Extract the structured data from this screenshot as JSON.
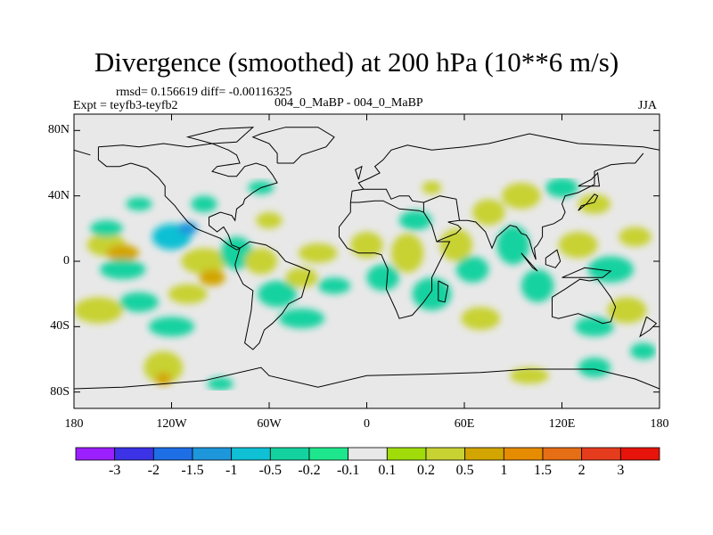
{
  "title": "Divergence (smoothed) at 200 hPa (10**6 m/s)",
  "stats": "rmsd= 0.156619 diff= -0.00116325",
  "expt": "Expt = teyfb3-teyfb2",
  "case": "004_0_MaBP - 004_0_MaBP",
  "season": "JJA",
  "colors": {
    "background": "#e8e8e8",
    "coast": "#000000",
    "bins": [
      "#9b1fff",
      "#3c32e6",
      "#1e6ee6",
      "#1e96dc",
      "#10c0d4",
      "#14d2a0",
      "#1ee68c",
      "#e8e8e8",
      "#a0dc0a",
      "#c8d232",
      "#d2a500",
      "#e68c00",
      "#e66e14",
      "#e63c1e",
      "#e6140a"
    ]
  },
  "lat_axis": {
    "labels": [
      "80N",
      "40N",
      "0",
      "40S",
      "80S"
    ],
    "values": [
      80,
      40,
      0,
      -40,
      -80
    ],
    "range": [
      -90,
      90
    ]
  },
  "lon_axis": {
    "labels": [
      "180",
      "120W",
      "60W",
      "0",
      "60E",
      "120E",
      "180"
    ],
    "values": [
      -180,
      -120,
      -60,
      0,
      60,
      120,
      180
    ],
    "range": [
      -180,
      180
    ]
  },
  "colorbar": {
    "labels": [
      "-3",
      "-2",
      "-1.5",
      "-1",
      "-0.5",
      "-0.2",
      "-0.1",
      "0.1",
      "0.2",
      "0.5",
      "1",
      "1.5",
      "2",
      "3"
    ]
  },
  "field_blobs": [
    {
      "lon": -160,
      "lat": 10,
      "rlon": 12,
      "rlat": 7,
      "v": 0.3
    },
    {
      "lon": -150,
      "lat": 5,
      "rlon": 10,
      "rlat": 5,
      "v": 0.6
    },
    {
      "lon": -150,
      "lat": -5,
      "rlon": 14,
      "rlat": 6,
      "v": -0.3
    },
    {
      "lon": -160,
      "lat": 20,
      "rlon": 10,
      "rlat": 5,
      "v": -0.3
    },
    {
      "lon": -165,
      "lat": -30,
      "rlon": 15,
      "rlat": 8,
      "v": 0.3
    },
    {
      "lon": -140,
      "lat": -25,
      "rlon": 12,
      "rlat": 6,
      "v": -0.3
    },
    {
      "lon": -120,
      "lat": 15,
      "rlon": 12,
      "rlat": 8,
      "v": -0.7
    },
    {
      "lon": -110,
      "lat": 20,
      "rlon": 6,
      "rlat": 4,
      "v": -1.2
    },
    {
      "lon": -100,
      "lat": 0,
      "rlon": 14,
      "rlat": 8,
      "v": 0.4
    },
    {
      "lon": -95,
      "lat": -10,
      "rlon": 8,
      "rlat": 5,
      "v": 0.7
    },
    {
      "lon": -110,
      "lat": -20,
      "rlon": 12,
      "rlat": 6,
      "v": 0.3
    },
    {
      "lon": -120,
      "lat": -40,
      "rlon": 14,
      "rlat": 6,
      "v": -0.3
    },
    {
      "lon": -125,
      "lat": -65,
      "rlon": 12,
      "rlat": 10,
      "v": 0.3
    },
    {
      "lon": -125,
      "lat": -72,
      "rlon": 5,
      "rlat": 4,
      "v": 0.7
    },
    {
      "lon": -140,
      "lat": 35,
      "rlon": 8,
      "rlat": 4,
      "v": -0.3
    },
    {
      "lon": -80,
      "lat": 5,
      "rlon": 10,
      "rlat": 10,
      "v": -0.5
    },
    {
      "lon": -65,
      "lat": 0,
      "rlon": 10,
      "rlat": 8,
      "v": 0.3
    },
    {
      "lon": -55,
      "lat": -20,
      "rlon": 12,
      "rlat": 8,
      "v": -0.3
    },
    {
      "lon": -40,
      "lat": -10,
      "rlon": 10,
      "rlat": 6,
      "v": 0.3
    },
    {
      "lon": -30,
      "lat": 5,
      "rlon": 12,
      "rlat": 6,
      "v": 0.4
    },
    {
      "lon": -40,
      "lat": -35,
      "rlon": 14,
      "rlat": 6,
      "v": -0.3
    },
    {
      "lon": -60,
      "lat": 25,
      "rlon": 8,
      "rlat": 5,
      "v": 0.3
    },
    {
      "lon": -100,
      "lat": 35,
      "rlon": 8,
      "rlat": 5,
      "v": -0.3
    },
    {
      "lon": -65,
      "lat": 45,
      "rlon": 8,
      "rlat": 4,
      "v": -0.3
    },
    {
      "lon": -20,
      "lat": -15,
      "rlon": 10,
      "rlat": 5,
      "v": -0.3
    },
    {
      "lon": 0,
      "lat": 10,
      "rlon": 10,
      "rlat": 8,
      "v": 0.3
    },
    {
      "lon": 10,
      "lat": -10,
      "rlon": 10,
      "rlat": 8,
      "v": -0.3
    },
    {
      "lon": 25,
      "lat": 5,
      "rlon": 10,
      "rlat": 12,
      "v": 0.3
    },
    {
      "lon": 30,
      "lat": 25,
      "rlon": 10,
      "rlat": 6,
      "v": -0.3
    },
    {
      "lon": 40,
      "lat": -20,
      "rlon": 12,
      "rlat": 10,
      "v": -0.3
    },
    {
      "lon": 40,
      "lat": 45,
      "rlon": 6,
      "rlat": 4,
      "v": 0.3
    },
    {
      "lon": 55,
      "lat": 10,
      "rlon": 10,
      "rlat": 10,
      "v": 0.4
    },
    {
      "lon": 65,
      "lat": -5,
      "rlon": 10,
      "rlat": 8,
      "v": -0.5
    },
    {
      "lon": 75,
      "lat": 30,
      "rlon": 10,
      "rlat": 8,
      "v": 0.3
    },
    {
      "lon": 70,
      "lat": -35,
      "rlon": 12,
      "rlat": 7,
      "v": 0.3
    },
    {
      "lon": 90,
      "lat": 10,
      "rlon": 10,
      "rlat": 12,
      "v": -0.4
    },
    {
      "lon": 95,
      "lat": 40,
      "rlon": 12,
      "rlat": 8,
      "v": 0.3
    },
    {
      "lon": 105,
      "lat": -15,
      "rlon": 10,
      "rlat": 10,
      "v": -0.3
    },
    {
      "lon": 120,
      "lat": 45,
      "rlon": 10,
      "rlat": 6,
      "v": -0.3
    },
    {
      "lon": 130,
      "lat": 10,
      "rlon": 12,
      "rlat": 8,
      "v": 0.3
    },
    {
      "lon": 140,
      "lat": 35,
      "rlon": 10,
      "rlat": 6,
      "v": 0.4
    },
    {
      "lon": 150,
      "lat": -5,
      "rlon": 14,
      "rlat": 8,
      "v": -0.3
    },
    {
      "lon": 165,
      "lat": 15,
      "rlon": 10,
      "rlat": 6,
      "v": 0.3
    },
    {
      "lon": 160,
      "lat": -30,
      "rlon": 12,
      "rlat": 8,
      "v": 0.3
    },
    {
      "lon": 140,
      "lat": -40,
      "rlon": 12,
      "rlat": 6,
      "v": -0.3
    },
    {
      "lon": 100,
      "lat": -70,
      "rlon": 12,
      "rlat": 5,
      "v": 0.3
    },
    {
      "lon": 140,
      "lat": -65,
      "rlon": 10,
      "rlat": 6,
      "v": -0.3
    },
    {
      "lon": -90,
      "lat": -75,
      "rlon": 8,
      "rlat": 4,
      "v": -0.3
    },
    {
      "lon": 170,
      "lat": -55,
      "rlon": 8,
      "rlat": 5,
      "v": -0.3
    }
  ],
  "coastlines": [
    [
      [
        -165,
        70
      ],
      [
        -150,
        71
      ],
      [
        -140,
        70
      ],
      [
        -125,
        72
      ],
      [
        -110,
        70
      ],
      [
        -95,
        72
      ],
      [
        -85,
        68
      ],
      [
        -80,
        65
      ],
      [
        -78,
        60
      ],
      [
        -92,
        58
      ],
      [
        -95,
        55
      ],
      [
        -85,
        52
      ],
      [
        -80,
        52
      ],
      [
        -75,
        58
      ],
      [
        -68,
        60
      ],
      [
        -62,
        58
      ],
      [
        -58,
        53
      ],
      [
        -55,
        48
      ],
      [
        -65,
        45
      ],
      [
        -70,
        42
      ],
      [
        -75,
        38
      ],
      [
        -76,
        35
      ],
      [
        -80,
        32
      ],
      [
        -81,
        25
      ],
      [
        -83,
        28
      ],
      [
        -90,
        30
      ],
      [
        -97,
        27
      ],
      [
        -97,
        22
      ],
      [
        -92,
        18
      ],
      [
        -88,
        21
      ],
      [
        -85,
        16
      ],
      [
        -83,
        10
      ],
      [
        -78,
        8
      ],
      [
        -80,
        7
      ],
      [
        -85,
        10
      ],
      [
        -90,
        14
      ],
      [
        -95,
        16
      ],
      [
        -105,
        20
      ],
      [
        -110,
        24
      ],
      [
        -115,
        30
      ],
      [
        -118,
        34
      ],
      [
        -124,
        40
      ],
      [
        -124,
        46
      ],
      [
        -128,
        51
      ],
      [
        -135,
        57
      ],
      [
        -145,
        60
      ],
      [
        -152,
        58
      ],
      [
        -160,
        58
      ],
      [
        -165,
        62
      ],
      [
        -165,
        70
      ]
    ],
    [
      [
        -78,
        8
      ],
      [
        -72,
        12
      ],
      [
        -62,
        10
      ],
      [
        -55,
        6
      ],
      [
        -50,
        0
      ],
      [
        -42,
        -3
      ],
      [
        -35,
        -6
      ],
      [
        -38,
        -15
      ],
      [
        -40,
        -22
      ],
      [
        -48,
        -26
      ],
      [
        -52,
        -32
      ],
      [
        -58,
        -38
      ],
      [
        -63,
        -42
      ],
      [
        -66,
        -50
      ],
      [
        -70,
        -54
      ],
      [
        -75,
        -50
      ],
      [
        -73,
        -40
      ],
      [
        -71,
        -30
      ],
      [
        -70,
        -18
      ],
      [
        -76,
        -14
      ],
      [
        -80,
        -6
      ],
      [
        -81,
        -2
      ],
      [
        -78,
        8
      ]
    ],
    [
      [
        -55,
        60
      ],
      [
        -45,
        60
      ],
      [
        -40,
        65
      ],
      [
        -25,
        70
      ],
      [
        -20,
        76
      ],
      [
        -30,
        82
      ],
      [
        -50,
        82
      ],
      [
        -65,
        78
      ],
      [
        -70,
        76
      ],
      [
        -60,
        72
      ],
      [
        -55,
        66
      ],
      [
        -55,
        60
      ]
    ],
    [
      [
        -10,
        36
      ],
      [
        -5,
        36
      ],
      [
        5,
        37
      ],
      [
        10,
        37
      ],
      [
        20,
        32
      ],
      [
        32,
        31
      ],
      [
        35,
        30
      ],
      [
        40,
        22
      ],
      [
        43,
        12
      ],
      [
        51,
        12
      ],
      [
        45,
        0
      ],
      [
        40,
        -10
      ],
      [
        40,
        -18
      ],
      [
        35,
        -25
      ],
      [
        28,
        -33
      ],
      [
        20,
        -35
      ],
      [
        18,
        -30
      ],
      [
        12,
        -17
      ],
      [
        13,
        -5
      ],
      [
        9,
        4
      ],
      [
        5,
        5
      ],
      [
        -5,
        5
      ],
      [
        -12,
        8
      ],
      [
        -17,
        15
      ],
      [
        -17,
        21
      ],
      [
        -10,
        30
      ],
      [
        -10,
        36
      ]
    ],
    [
      [
        -10,
        36
      ],
      [
        -9,
        43
      ],
      [
        -2,
        44
      ],
      [
        -5,
        48
      ],
      [
        2,
        51
      ],
      [
        8,
        54
      ],
      [
        5,
        58
      ],
      [
        10,
        62
      ],
      [
        15,
        68
      ],
      [
        25,
        71
      ],
      [
        40,
        68
      ],
      [
        60,
        70
      ],
      [
        75,
        72
      ],
      [
        100,
        78
      ],
      [
        130,
        72
      ],
      [
        150,
        71
      ],
      [
        170,
        70
      ],
      [
        180,
        68
      ]
    ],
    [
      [
        -180,
        68
      ],
      [
        -170,
        65
      ]
    ],
    [
      [
        35,
        30
      ],
      [
        35,
        36
      ],
      [
        28,
        37
      ],
      [
        26,
        40
      ],
      [
        20,
        40
      ],
      [
        15,
        38
      ],
      [
        12,
        44
      ],
      [
        5,
        44
      ],
      [
        -2,
        44
      ]
    ],
    [
      [
        35,
        36
      ],
      [
        45,
        40
      ],
      [
        55,
        38
      ],
      [
        57,
        25
      ],
      [
        50,
        24
      ],
      [
        56,
        22
      ],
      [
        58,
        20
      ],
      [
        55,
        17
      ],
      [
        45,
        13
      ],
      [
        43,
        12
      ]
    ],
    [
      [
        57,
        25
      ],
      [
        62,
        25
      ],
      [
        67,
        24
      ],
      [
        73,
        18
      ],
      [
        77,
        8
      ],
      [
        80,
        15
      ],
      [
        88,
        22
      ],
      [
        92,
        21
      ],
      [
        95,
        17
      ],
      [
        98,
        16
      ],
      [
        100,
        13
      ],
      [
        102,
        6
      ],
      [
        104,
        1
      ],
      [
        103,
        8
      ],
      [
        105,
        10
      ],
      [
        108,
        15
      ],
      [
        108,
        21
      ],
      [
        115,
        23
      ],
      [
        120,
        26
      ],
      [
        122,
        30
      ],
      [
        120,
        35
      ],
      [
        122,
        40
      ],
      [
        130,
        42
      ],
      [
        140,
        47
      ],
      [
        140,
        55
      ],
      [
        150,
        59
      ],
      [
        160,
        60
      ],
      [
        165,
        60
      ],
      [
        170,
        66
      ]
    ],
    [
      [
        -5,
        50
      ],
      [
        -3,
        58
      ],
      [
        -7,
        56
      ],
      [
        -5,
        50
      ]
    ],
    [
      [
        130,
        31
      ],
      [
        132,
        34
      ],
      [
        140,
        36
      ],
      [
        142,
        40
      ],
      [
        140,
        41
      ],
      [
        135,
        35
      ],
      [
        130,
        31
      ]
    ],
    [
      [
        95,
        5
      ],
      [
        105,
        -6
      ],
      [
        102,
        -4
      ],
      [
        95,
        5
      ]
    ],
    [
      [
        110,
        2
      ],
      [
        117,
        7
      ],
      [
        119,
        0
      ],
      [
        116,
        -4
      ],
      [
        110,
        -2
      ],
      [
        110,
        2
      ]
    ],
    [
      [
        120,
        -10
      ],
      [
        134,
        -4
      ],
      [
        150,
        -6
      ],
      [
        145,
        -10
      ],
      [
        135,
        -10
      ],
      [
        120,
        -10
      ]
    ],
    [
      [
        114,
        -22
      ],
      [
        114,
        -34
      ],
      [
        118,
        -35
      ],
      [
        130,
        -32
      ],
      [
        138,
        -35
      ],
      [
        145,
        -38
      ],
      [
        150,
        -37
      ],
      [
        153,
        -28
      ],
      [
        150,
        -22
      ],
      [
        145,
        -15
      ],
      [
        142,
        -11
      ],
      [
        137,
        -12
      ],
      [
        131,
        -11
      ],
      [
        122,
        -17
      ],
      [
        114,
        -22
      ]
    ],
    [
      [
        172,
        -34
      ],
      [
        178,
        -38
      ],
      [
        174,
        -42
      ],
      [
        168,
        -46
      ],
      [
        172,
        -34
      ]
    ],
    [
      [
        44,
        -12
      ],
      [
        50,
        -15
      ],
      [
        48,
        -25
      ],
      [
        44,
        -24
      ],
      [
        44,
        -12
      ]
    ],
    [
      [
        -180,
        -78
      ],
      [
        -150,
        -77
      ],
      [
        -100,
        -73
      ],
      [
        -65,
        -65
      ],
      [
        -60,
        -70
      ],
      [
        -30,
        -77
      ],
      [
        0,
        -70
      ],
      [
        40,
        -69
      ],
      [
        70,
        -68
      ],
      [
        100,
        -66
      ],
      [
        140,
        -66
      ],
      [
        165,
        -72
      ],
      [
        180,
        -78
      ]
    ],
    [
      [
        -95,
        72
      ],
      [
        -80,
        73
      ],
      [
        -70,
        82
      ],
      [
        -90,
        81
      ],
      [
        -110,
        76
      ],
      [
        -95,
        72
      ]
    ],
    [
      [
        130,
        46
      ],
      [
        143,
        46
      ],
      [
        142,
        54
      ],
      [
        138,
        50
      ],
      [
        130,
        46
      ]
    ]
  ]
}
